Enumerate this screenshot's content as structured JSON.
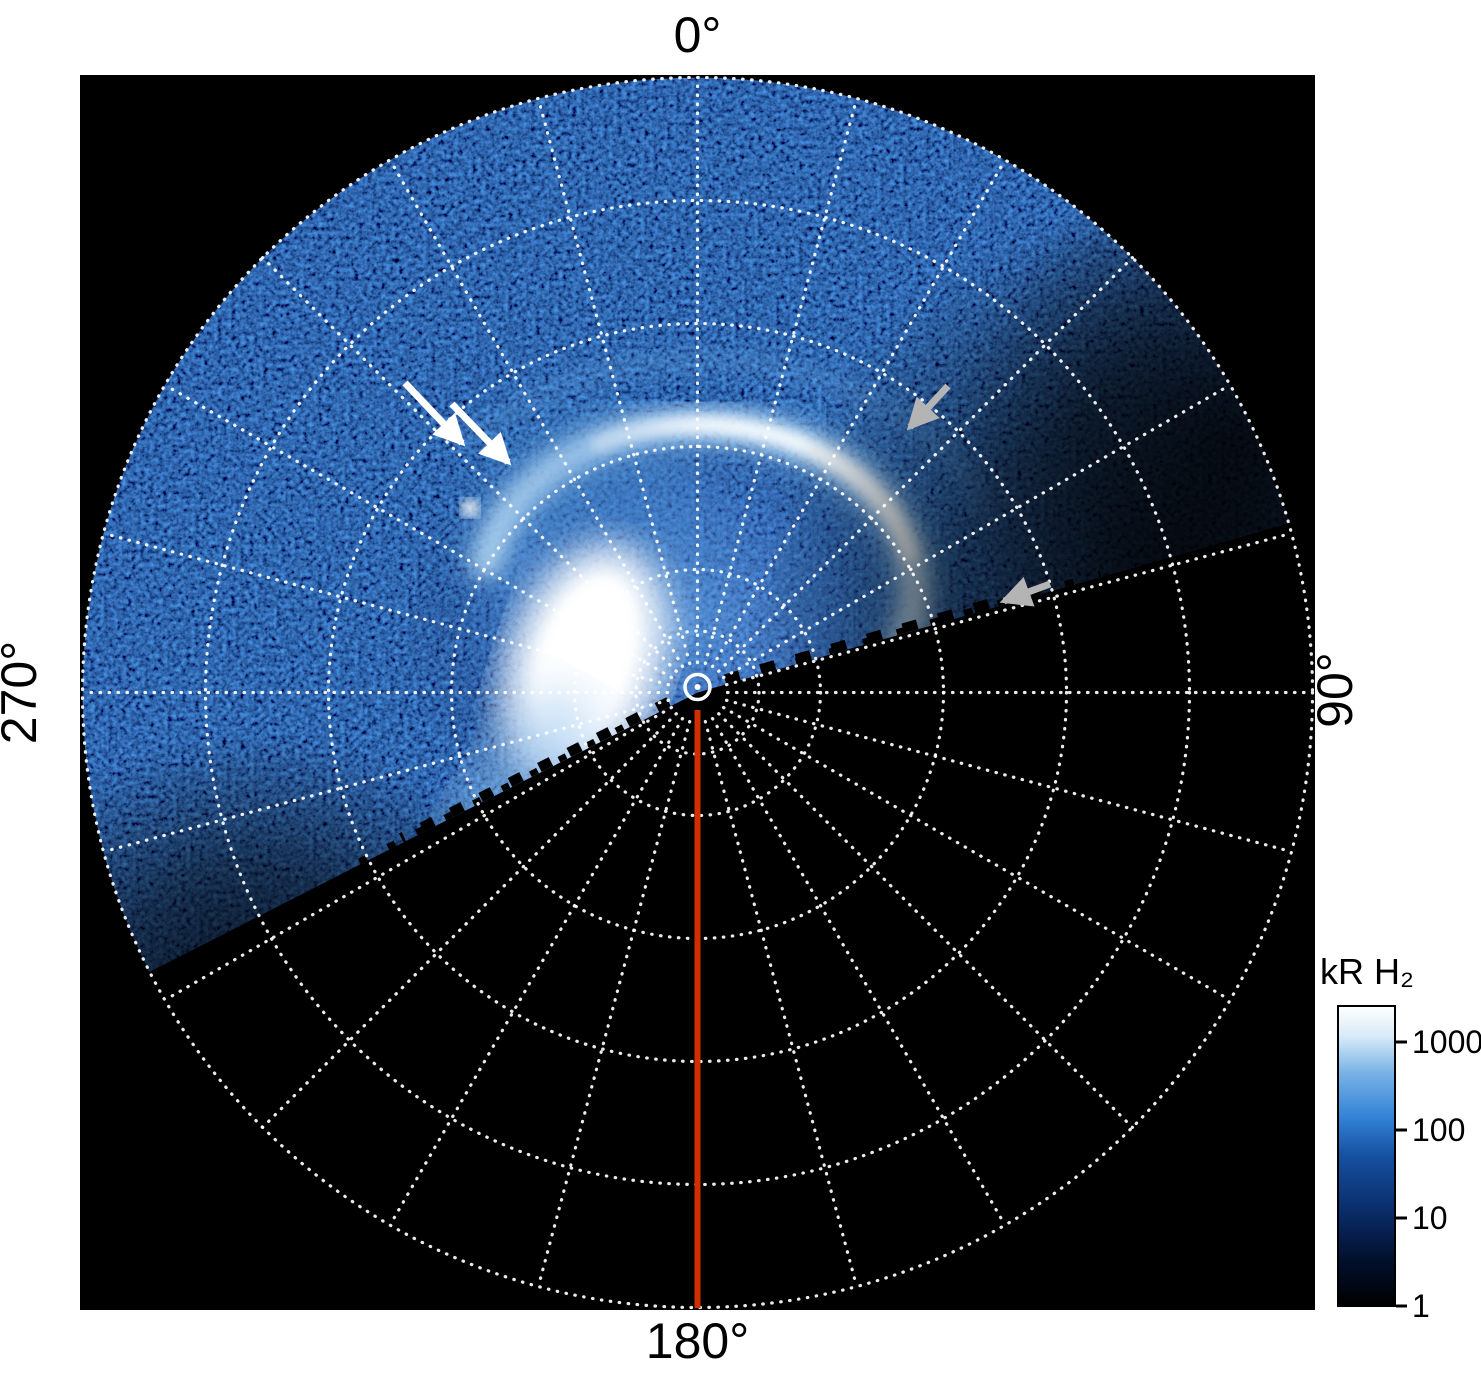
{
  "figure": {
    "background": "#ffffff",
    "plot_background": "#000000"
  },
  "axis_labels": {
    "top": "0°",
    "right": "90°",
    "bottom": "180°",
    "left": "270°"
  },
  "colorbar": {
    "title": "kR H₂",
    "ticks": [
      "1000",
      "100",
      "10",
      "1"
    ]
  },
  "chart_data": {
    "type": "heatmap",
    "projection": "polar",
    "description": "Polar projection of auroral H2 emission on a log color scale (kR H2). The imaged sector spans roughly from 243° through 0° to 74°; the remainder of the polar grid is empty black.",
    "angle_tick_labels": [
      "0°",
      "90°",
      "180°",
      "270°"
    ],
    "grid": {
      "ring_fractions": [
        0.1,
        0.2,
        0.4,
        0.6,
        0.8,
        1.0
      ],
      "spoke_step_deg": 15,
      "line_style": "dotted",
      "color": "#ffffff"
    },
    "coverage_deg": {
      "start": 243,
      "end": 74
    },
    "colorbar": {
      "title": "kR H₂",
      "scale": "log",
      "tick_values": [
        1000,
        100,
        10,
        1
      ],
      "gradient_top_to_bottom": [
        "#ffffff",
        "#d8ebf8",
        "#7ab4e6",
        "#2f7fd4",
        "#1650a0",
        "#0a2f6e",
        "#020f2c",
        "#000000"
      ]
    },
    "features": [
      {
        "name": "main-auroral-oval",
        "description": "Bright emission oval around the pole; saturated white patch left/lower-left of the pole and a narrow bright arc on the upper-right (0°-90°) side"
      },
      {
        "name": "diffuse-emission",
        "description": "Faint blue speckle noise over the whole imaged sector, with radial streaks and fading emission near the dayside (90°) data edge"
      },
      {
        "name": "white-arrows",
        "count": 2,
        "description": "Two parallel white arrows in the upper left pointing southeast toward a faint arc feature"
      },
      {
        "name": "gray-arrows",
        "count": 2,
        "description": "One gray arrow pointing at the bright arc near 45°, one gray arrow pointing at the jagged data boundary near 80°"
      },
      {
        "name": "meridian-line-180",
        "color": "#d02f00",
        "description": "Solid red-orange line from the pole outward along the 180° meridian"
      },
      {
        "name": "pole-marker",
        "description": "Small white open circle marking the pole"
      }
    ]
  }
}
